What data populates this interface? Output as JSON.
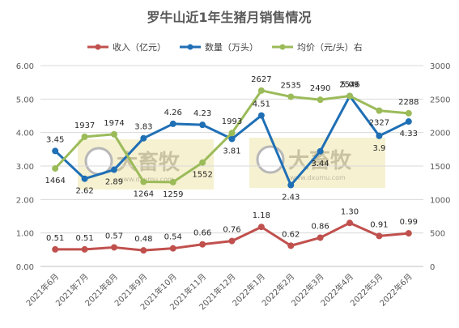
{
  "chart_data": {
    "type": "line",
    "title": "罗牛山近1年生猪月销售情况",
    "categories": [
      "2021年6月",
      "2021年7月",
      "2021年8月",
      "2021年9月",
      "2021年10月",
      "2021年11月",
      "2021年12月",
      "2022年1月",
      "2022年2月",
      "2022年3月",
      "2022年4月",
      "2022年5月",
      "2022年6月"
    ],
    "y_left": {
      "ticks": [
        "0.00",
        "1.00",
        "2.00",
        "3.00",
        "4.00",
        "5.00",
        "6.00"
      ],
      "range": [
        0,
        6
      ]
    },
    "y_right": {
      "ticks": [
        "0",
        "500",
        "1000",
        "1500",
        "2000",
        "2500",
        "3000"
      ],
      "range": [
        0,
        3000
      ]
    },
    "grid": true,
    "legend_position": "top",
    "series": [
      {
        "name": "收入（亿元）",
        "axis": "left",
        "color": "#C0504D",
        "values": [
          0.51,
          0.51,
          0.57,
          0.48,
          0.54,
          0.66,
          0.76,
          1.18,
          0.62,
          0.86,
          1.3,
          0.91,
          0.99
        ],
        "labels": [
          "0.51",
          "0.51",
          "0.57",
          "0.48",
          "0.54",
          "0.66",
          "0.76",
          "1.18",
          "0.62",
          "0.86",
          "1.30",
          "0.91",
          "0.99"
        ]
      },
      {
        "name": "数量（万头）",
        "axis": "left",
        "color": "#1F6FB5",
        "values": [
          3.45,
          2.62,
          2.89,
          3.83,
          4.26,
          4.23,
          3.81,
          4.51,
          2.43,
          3.44,
          5.09,
          3.9,
          4.33
        ],
        "labels": [
          "3.45",
          "2.62",
          "2.89",
          "3.83",
          "4.26",
          "4.23",
          "3.81",
          "4.51",
          "2.43",
          "3.44",
          "5.09",
          "3.9",
          "4.33"
        ]
      },
      {
        "name": "均价（元/头）右",
        "axis": "right",
        "color": "#9BBB59",
        "values": [
          1464,
          1937,
          1974,
          1264,
          1259,
          1552,
          1993,
          2627,
          2535,
          2490,
          2546,
          2327,
          2288
        ],
        "labels": [
          "1464",
          "1937",
          "1974",
          "1264",
          "1259",
          "1552",
          "1993",
          "2627",
          "2535",
          "2490",
          "2546",
          "2327",
          "2288"
        ]
      }
    ]
  },
  "watermark": {
    "text": "大畜牧",
    "url_text": "www.dxumu.com"
  }
}
